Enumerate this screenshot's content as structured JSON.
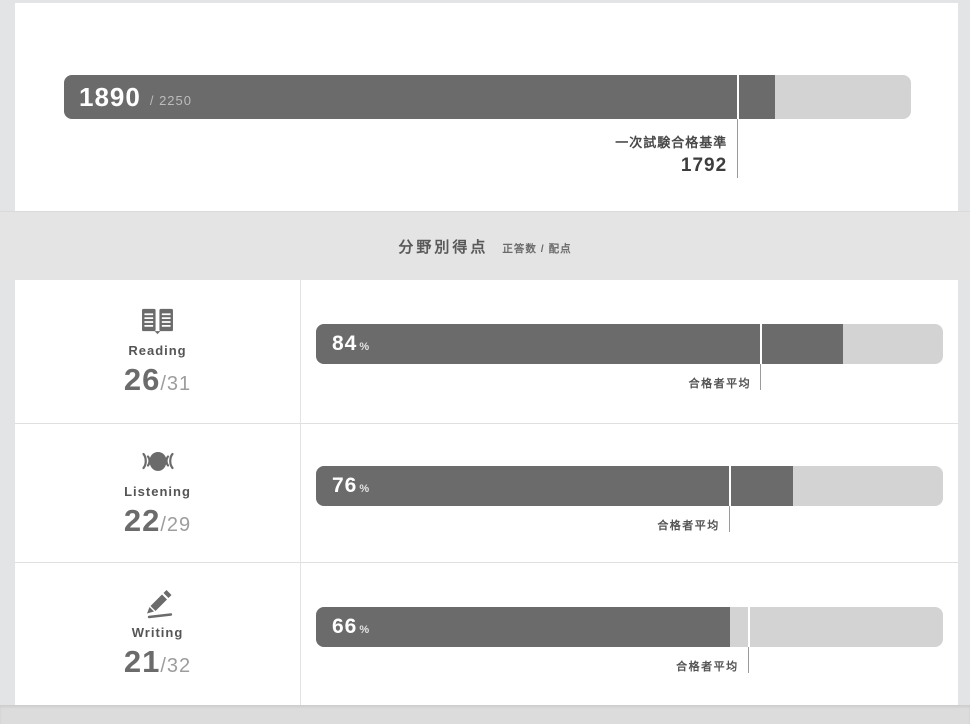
{
  "colors": {
    "bar_fill": "#6b6b6b",
    "bar_track": "#d3d3d3",
    "band_bg": "#e4e4e4",
    "page_bg": "#e3e4e6",
    "marker_tail": "#9b9b9b"
  },
  "overall_score": {
    "value": "1890",
    "max_display": "/ 2250",
    "percent": 84,
    "pass_mark": {
      "label": "一次試験合格基準",
      "value": "1792",
      "percent": 79.6
    }
  },
  "section_header": {
    "title": "分野別得点",
    "subtitle": "正答数 / 配点"
  },
  "categories": [
    {
      "label": "Reading",
      "icon": "book-open-icon",
      "score": "26",
      "max_display": "/31",
      "percent_value": "84",
      "percent_unit": "%",
      "bar_percent": 84,
      "average_marker": {
        "label": "合格者平均",
        "percent": 71
      }
    },
    {
      "label": "Listening",
      "icon": "listening-icon",
      "score": "22",
      "max_display": "/29",
      "percent_value": "76",
      "percent_unit": "%",
      "bar_percent": 76,
      "average_marker": {
        "label": "合格者平均",
        "percent": 66
      }
    },
    {
      "label": "Writing",
      "icon": "pencil-icon",
      "score": "21",
      "max_display": "/32",
      "percent_value": "66",
      "percent_unit": "%",
      "bar_percent": 66,
      "average_marker": {
        "label": "合格者平均",
        "percent": 69
      }
    }
  ]
}
